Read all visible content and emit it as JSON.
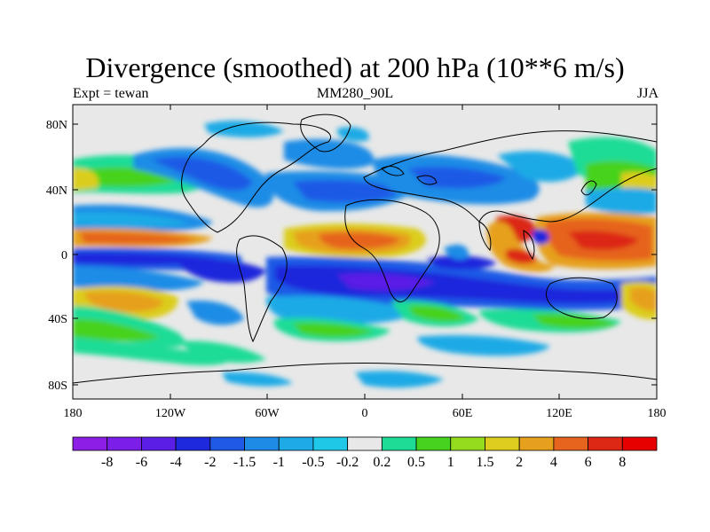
{
  "title": "Divergence (smoothed) at 200 hPa (10**6 m/s)",
  "subtitle_left": "Expt = tewan",
  "subtitle_center": "MM280_90L",
  "subtitle_right": "JJA",
  "lat_ticks": [
    "80N",
    "40N",
    "0",
    "40S",
    "80S"
  ],
  "lon_ticks": [
    "180",
    "120W",
    "60W",
    "0",
    "60E",
    "120E",
    "180"
  ],
  "colorbar": {
    "labels": [
      "-8",
      "-6",
      "-4",
      "-2",
      "-1.5",
      "-1",
      "-0.5",
      "-0.2",
      "0.2",
      "0.5",
      "1",
      "1.5",
      "2",
      "4",
      "6",
      "8"
    ],
    "colors": [
      "#8c1ee6",
      "#7a1ee8",
      "#5a1ee6",
      "#1e28dc",
      "#1e5ae6",
      "#1e8ce6",
      "#1eaae6",
      "#1ec8e6",
      "#e8e8e8",
      "#1edc96",
      "#46d21e",
      "#96dc1e",
      "#dccd1e",
      "#e6a01e",
      "#e6641e",
      "#dc2814",
      "#e60000"
    ]
  },
  "colors": {
    "land_outline": "#000000",
    "frame": "#000000",
    "neutral": "#e8e8e8"
  }
}
